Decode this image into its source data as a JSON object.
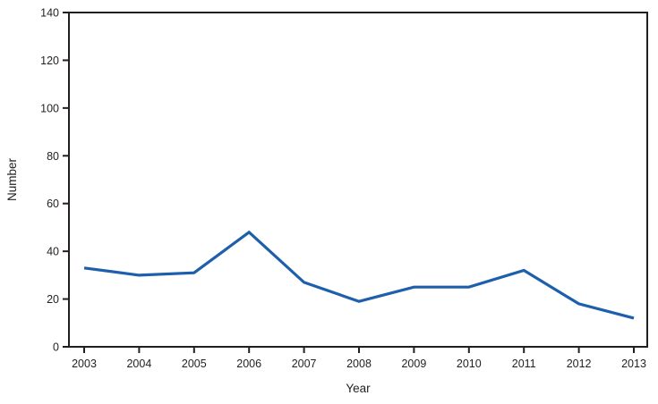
{
  "chart_data": {
    "type": "line",
    "title": "",
    "xlabel": "Year",
    "ylabel": "Number",
    "categories": [
      "2003",
      "2004",
      "2005",
      "2006",
      "2007",
      "2008",
      "2009",
      "2010",
      "2011",
      "2012",
      "2013"
    ],
    "series": [
      {
        "name": "Number",
        "values": [
          33,
          30,
          31,
          48,
          27,
          19,
          25,
          25,
          32,
          18,
          12
        ],
        "color": "#1d5fac"
      }
    ],
    "ylim": [
      0,
      140
    ],
    "ytick_interval": 20,
    "yticks": [
      0,
      20,
      40,
      60,
      80,
      100,
      120,
      140
    ],
    "grid": false,
    "legend": "none",
    "frame": "full-box"
  },
  "colors": {
    "line": "#1d5fac",
    "axis": "#231f20",
    "background": "#ffffff"
  }
}
